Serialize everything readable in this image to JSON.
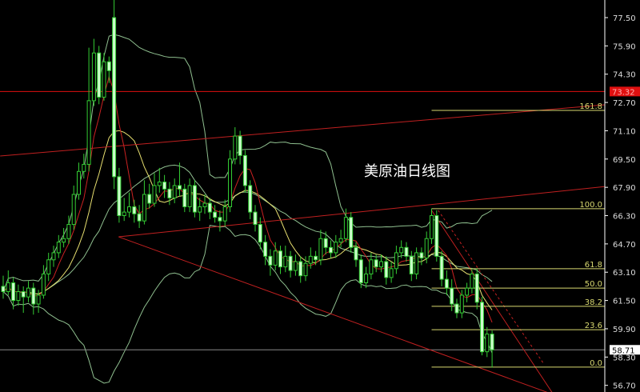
{
  "chart_data": {
    "type": "candlestick",
    "title": "美原油日线图",
    "y_ticks": [
      "77.50",
      "75.90",
      "74.30",
      "72.70",
      "71.10",
      "69.50",
      "67.90",
      "66.30",
      "64.70",
      "63.10",
      "61.50",
      "59.90",
      "58.30",
      "56.70"
    ],
    "ylim": [
      56.2,
      78.5
    ],
    "grid": false,
    "ohlc": [
      [
        62.3,
        62.9,
        61.6,
        62.0
      ],
      [
        62.0,
        63.2,
        61.8,
        62.5
      ],
      [
        62.5,
        62.8,
        61.0,
        61.5
      ],
      [
        61.5,
        62.4,
        61.2,
        62.0
      ],
      [
        62.0,
        62.3,
        60.8,
        61.7
      ],
      [
        61.7,
        62.6,
        61.4,
        62.2
      ],
      [
        62.2,
        62.5,
        60.7,
        61.3
      ],
      [
        61.3,
        62.1,
        60.8,
        61.8
      ],
      [
        61.8,
        63.5,
        61.6,
        63.0
      ],
      [
        63.0,
        64.2,
        62.6,
        63.8
      ],
      [
        63.8,
        64.6,
        63.4,
        64.2
      ],
      [
        64.2,
        65.2,
        63.9,
        64.8
      ],
      [
        64.8,
        65.6,
        64.5,
        65.0
      ],
      [
        65.0,
        66.3,
        64.7,
        65.8
      ],
      [
        65.8,
        68.0,
        65.5,
        67.5
      ],
      [
        67.5,
        69.3,
        67.2,
        68.8
      ],
      [
        68.8,
        69.8,
        68.4,
        69.2
      ],
      [
        69.2,
        75.8,
        68.8,
        72.8
      ],
      [
        72.8,
        76.3,
        72.5,
        75.5
      ],
      [
        75.5,
        75.9,
        72.6,
        73.0
      ],
      [
        73.0,
        75.5,
        72.8,
        75.0
      ],
      [
        75.0,
        75.3,
        73.8,
        74.5
      ],
      [
        77.5,
        78.5,
        67.8,
        68.5
      ],
      [
        68.5,
        69.0,
        65.9,
        66.3
      ],
      [
        66.3,
        67.3,
        66.0,
        66.5
      ],
      [
        66.5,
        67.6,
        66.2,
        66.8
      ],
      [
        66.8,
        67.2,
        65.9,
        66.4
      ],
      [
        66.4,
        66.9,
        65.6,
        66.0
      ],
      [
        66.0,
        68.3,
        65.8,
        67.5
      ],
      [
        67.5,
        68.1,
        66.7,
        67.0
      ],
      [
        67.0,
        68.7,
        66.8,
        68.0
      ],
      [
        68.0,
        69.0,
        67.6,
        68.2
      ],
      [
        68.2,
        68.6,
        67.3,
        67.8
      ],
      [
        67.8,
        68.2,
        66.9,
        67.3
      ],
      [
        67.3,
        68.4,
        67.0,
        68.0
      ],
      [
        68.0,
        69.3,
        67.4,
        67.8
      ],
      [
        67.8,
        68.1,
        66.5,
        66.8
      ],
      [
        66.8,
        68.4,
        66.5,
        68.0
      ],
      [
        68.0,
        68.3,
        66.2,
        66.5
      ],
      [
        66.5,
        67.3,
        66.0,
        66.8
      ],
      [
        66.8,
        67.5,
        66.4,
        67.0
      ],
      [
        67.0,
        67.3,
        66.1,
        66.5
      ],
      [
        66.5,
        66.9,
        65.9,
        66.2
      ],
      [
        66.2,
        66.6,
        65.4,
        66.0
      ],
      [
        66.0,
        67.2,
        65.7,
        66.8
      ],
      [
        66.8,
        70.0,
        66.5,
        69.5
      ],
      [
        69.5,
        71.3,
        69.2,
        70.8
      ],
      [
        70.8,
        71.1,
        69.2,
        69.7
      ],
      [
        69.7,
        70.0,
        67.6,
        68.0
      ],
      [
        68.0,
        68.3,
        66.1,
        66.5
      ],
      [
        66.5,
        66.9,
        65.4,
        65.8
      ],
      [
        65.8,
        66.2,
        64.4,
        64.8
      ],
      [
        64.8,
        65.2,
        63.5,
        64.0
      ],
      [
        64.0,
        64.4,
        62.9,
        63.5
      ],
      [
        63.5,
        64.8,
        63.2,
        64.3
      ],
      [
        64.3,
        64.6,
        63.0,
        63.4
      ],
      [
        63.4,
        64.6,
        63.1,
        64.0
      ],
      [
        64.0,
        64.3,
        62.8,
        63.2
      ],
      [
        63.2,
        64.1,
        62.9,
        63.7
      ],
      [
        63.7,
        64.0,
        62.5,
        62.9
      ],
      [
        62.9,
        64.0,
        62.6,
        63.6
      ],
      [
        63.6,
        64.5,
        63.3,
        64.0
      ],
      [
        64.0,
        64.3,
        63.5,
        63.8
      ],
      [
        63.8,
        65.5,
        63.5,
        65.0
      ],
      [
        65.0,
        65.4,
        64.1,
        64.5
      ],
      [
        64.5,
        64.9,
        63.9,
        64.2
      ],
      [
        64.2,
        65.2,
        63.9,
        64.8
      ],
      [
        64.8,
        65.5,
        64.5,
        65.0
      ],
      [
        65.0,
        66.7,
        64.8,
        66.2
      ],
      [
        66.2,
        66.5,
        64.2,
        64.5
      ],
      [
        64.5,
        64.8,
        63.4,
        63.8
      ],
      [
        63.8,
        64.1,
        62.2,
        62.5
      ],
      [
        62.5,
        63.4,
        62.2,
        63.0
      ],
      [
        63.0,
        64.2,
        62.7,
        63.8
      ],
      [
        63.8,
        64.1,
        63.1,
        63.4
      ],
      [
        63.4,
        64.1,
        63.1,
        63.7
      ],
      [
        63.7,
        64.0,
        62.4,
        62.8
      ],
      [
        62.8,
        63.7,
        62.5,
        63.3
      ],
      [
        63.3,
        64.6,
        63.0,
        64.2
      ],
      [
        64.2,
        64.9,
        63.9,
        64.5
      ],
      [
        64.5,
        64.8,
        63.7,
        64.0
      ],
      [
        64.0,
        64.3,
        62.6,
        63.0
      ],
      [
        63.0,
        64.5,
        62.7,
        64.2
      ],
      [
        64.2,
        64.5,
        63.5,
        63.9
      ],
      [
        63.9,
        65.4,
        63.6,
        65.0
      ],
      [
        65.0,
        66.7,
        64.7,
        66.3
      ],
      [
        66.3,
        66.6,
        63.7,
        64.0
      ],
      [
        64.0,
        64.3,
        62.3,
        62.7
      ],
      [
        62.7,
        63.2,
        61.8,
        62.2
      ],
      [
        62.2,
        62.7,
        60.9,
        61.3
      ],
      [
        61.3,
        61.6,
        60.5,
        60.8
      ],
      [
        60.8,
        62.1,
        60.5,
        61.8
      ],
      [
        61.8,
        62.5,
        61.4,
        62.2
      ],
      [
        62.2,
        63.3,
        61.9,
        63.0
      ],
      [
        63.0,
        63.3,
        61.0,
        61.4
      ],
      [
        61.4,
        61.7,
        58.4,
        58.6
      ],
      [
        58.6,
        60.0,
        58.3,
        59.6
      ],
      [
        59.6,
        59.8,
        57.7,
        58.71
      ]
    ],
    "current_price": "58.71",
    "marked_price": "73.32",
    "fibonacci": {
      "levels": [
        {
          "label": "161.8",
          "price": 72.25
        },
        {
          "label": "100.0",
          "price": 66.69
        },
        {
          "label": "61.8",
          "price": 63.3
        },
        {
          "label": "50.0",
          "price": 62.2
        },
        {
          "label": "38.2",
          "price": 61.17
        },
        {
          "label": "23.6",
          "price": 59.85
        },
        {
          "label": "0.0",
          "price": 57.73
        }
      ],
      "start_index": 85
    },
    "trendlines": [
      {
        "from": [
          -0.6,
          69.67
        ],
        "to": [
          124.8,
          72.7
        ],
        "style": "solid"
      },
      {
        "from": [
          22.9,
          65.1
        ],
        "to": [
          124.8,
          68.1
        ],
        "style": "solid"
      },
      {
        "from": [
          22.9,
          65.1
        ],
        "to": [
          108,
          56.3
        ],
        "style": "solid"
      },
      {
        "from": [
          85,
          66.6
        ],
        "to": [
          108.9,
          56.3
        ],
        "style": "solid"
      },
      {
        "from": [
          86.3,
          66.6
        ],
        "to": [
          107.3,
          57.9
        ],
        "style": "dashed"
      }
    ],
    "indicators": [
      "MA5",
      "MA10",
      "Bollinger(20,2)"
    ],
    "colors": {
      "bull": "#33cc33",
      "bear_fill": "#ccffcc",
      "ma_fast": "#cc2222",
      "ma_slow": "#e8e070",
      "bands": "#8fbf8f",
      "trend": "#c02020",
      "fib": "#d8d870",
      "axis": "#ffffff",
      "marker": "#e01010"
    }
  }
}
